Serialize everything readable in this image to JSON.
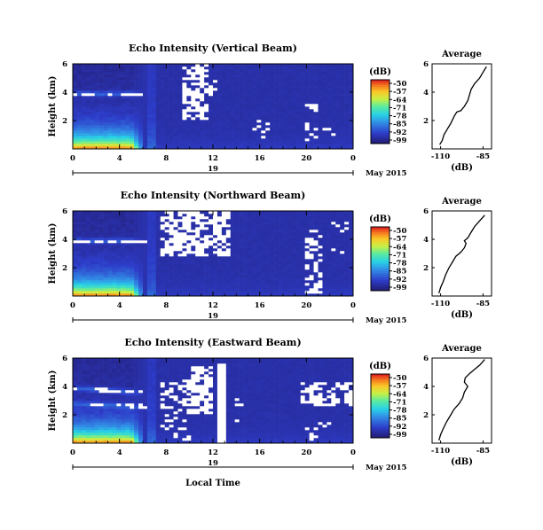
{
  "chart_data": [
    {
      "type": "heatmap",
      "title": "Echo Intensity (Vertical Beam)",
      "ylabel": "Height (km)",
      "x_ticks": [
        "0",
        "4",
        "8",
        "12",
        "16",
        "20",
        "0"
      ],
      "y_ticks": [
        "6",
        "4",
        "2"
      ],
      "date_label": "19",
      "date_suffix": "May 2015",
      "xlim": [
        0,
        24
      ],
      "ylim": [
        0,
        6
      ],
      "colorbar": {
        "unit": "(dB)",
        "ticks": [
          "-50",
          "-57",
          "-64",
          "-71",
          "-78",
          "-85",
          "-92",
          "-99"
        ]
      },
      "profile": {
        "title": "Average",
        "xlabel": "(dB)",
        "x_ticks": [
          "-110",
          "-85"
        ],
        "y_ticks": [
          "6",
          "4",
          "2"
        ],
        "xlim": [
          -115,
          -80
        ],
        "ylim": [
          0,
          6
        ],
        "points": [
          [
            -110.5,
            0.3
          ],
          [
            -109,
            0.6
          ],
          [
            -108,
            1.0
          ],
          [
            -106,
            1.4
          ],
          [
            -104,
            1.8
          ],
          [
            -102,
            2.3
          ],
          [
            -100.5,
            2.6
          ],
          [
            -98,
            2.7
          ],
          [
            -96,
            3.0
          ],
          [
            -94,
            3.4
          ],
          [
            -93,
            3.8
          ],
          [
            -92,
            4.2
          ],
          [
            -90,
            4.6
          ],
          [
            -87,
            5.0
          ],
          [
            -85,
            5.4
          ],
          [
            -83,
            5.8
          ]
        ]
      }
    },
    {
      "type": "heatmap",
      "title": "Echo Intensity (Northward Beam)",
      "ylabel": "Height (km)",
      "x_ticks": [
        "0",
        "4",
        "8",
        "12",
        "16",
        "20",
        "0"
      ],
      "y_ticks": [
        "6",
        "4",
        "2"
      ],
      "date_label": "19",
      "date_suffix": "May 2015",
      "xlim": [
        0,
        24
      ],
      "ylim": [
        0,
        6
      ],
      "colorbar": {
        "unit": "(dB)",
        "ticks": [
          "-50",
          "-57",
          "-64",
          "-71",
          "-78",
          "-85",
          "-92",
          "-99"
        ]
      },
      "profile": {
        "title": "Average",
        "xlabel": "(dB)",
        "x_ticks": [
          "-110",
          "-85"
        ],
        "y_ticks": [
          "6",
          "4",
          "2"
        ],
        "xlim": [
          -115,
          -80
        ],
        "ylim": [
          0,
          6
        ],
        "points": [
          [
            -111,
            0.2
          ],
          [
            -110,
            0.6
          ],
          [
            -108.5,
            1.0
          ],
          [
            -107,
            1.5
          ],
          [
            -105,
            2.0
          ],
          [
            -103,
            2.4
          ],
          [
            -101,
            2.8
          ],
          [
            -98,
            3.1
          ],
          [
            -96,
            3.4
          ],
          [
            -95,
            3.7
          ],
          [
            -96,
            3.9
          ],
          [
            -94,
            4.1
          ],
          [
            -92,
            4.5
          ],
          [
            -90,
            4.9
          ],
          [
            -87,
            5.3
          ],
          [
            -84,
            5.7
          ]
        ]
      }
    },
    {
      "type": "heatmap",
      "title": "Echo Intensity (Eastward Beam)",
      "ylabel": "Height (km)",
      "x_ticks": [
        "0",
        "4",
        "8",
        "12",
        "16",
        "20",
        "0"
      ],
      "y_ticks": [
        "6",
        "4",
        "2"
      ],
      "date_label": "19",
      "date_suffix": "May 2015",
      "xlim": [
        0,
        24
      ],
      "ylim": [
        0,
        6
      ],
      "colorbar": {
        "unit": "(dB)",
        "ticks": [
          "-50",
          "-57",
          "-64",
          "-71",
          "-78",
          "-85",
          "-92",
          "-99"
        ]
      },
      "profile": {
        "title": "Average",
        "xlabel": "(dB)",
        "x_ticks": [
          "-110",
          "-85"
        ],
        "y_ticks": [
          "6",
          "4",
          "2"
        ],
        "xlim": [
          -115,
          -80
        ],
        "ylim": [
          0,
          6
        ],
        "points": [
          [
            -111,
            0.2
          ],
          [
            -110,
            0.6
          ],
          [
            -108.5,
            1.0
          ],
          [
            -106.5,
            1.5
          ],
          [
            -104,
            2.0
          ],
          [
            -102,
            2.4
          ],
          [
            -99,
            2.8
          ],
          [
            -97,
            3.2
          ],
          [
            -96,
            3.6
          ],
          [
            -94,
            4.0
          ],
          [
            -96,
            4.3
          ],
          [
            -95.5,
            4.6
          ],
          [
            -93,
            4.9
          ],
          [
            -90,
            5.2
          ],
          [
            -87,
            5.5
          ],
          [
            -84,
            5.9
          ]
        ]
      }
    }
  ],
  "figure": {
    "xlabel": "Local Time"
  }
}
